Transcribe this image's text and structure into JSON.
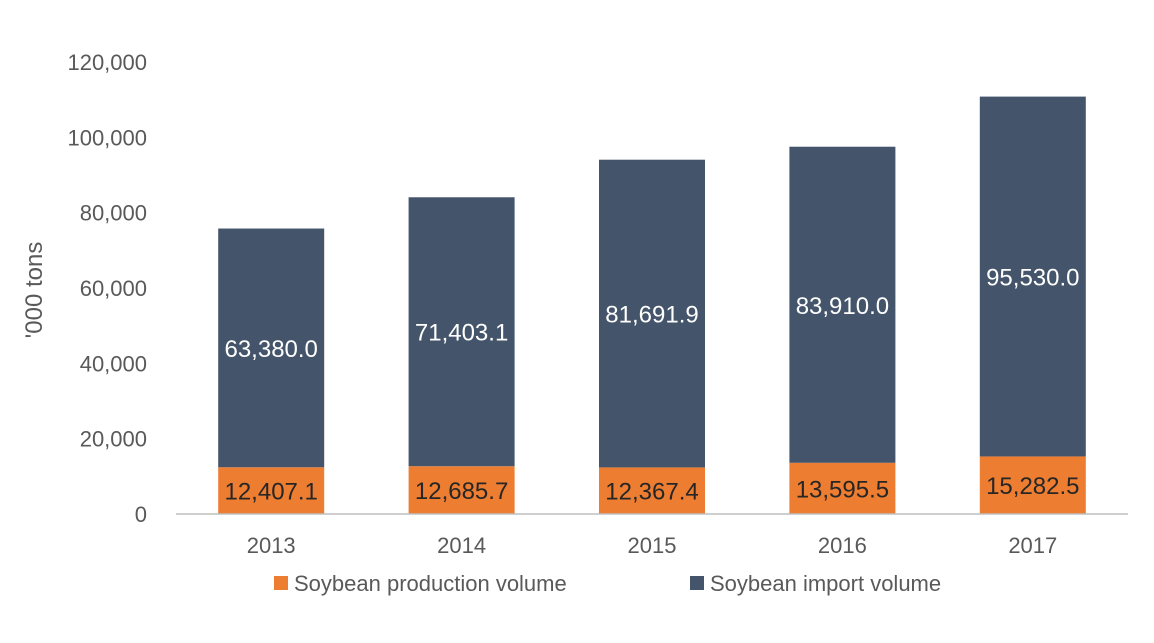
{
  "chart_data": {
    "type": "bar",
    "stacked": true,
    "title": "",
    "xlabel": "",
    "ylabel": "'000 tons",
    "categories": [
      "2013",
      "2014",
      "2015",
      "2016",
      "2017"
    ],
    "ylim": [
      0,
      120000
    ],
    "yticks": [
      0,
      20000,
      40000,
      60000,
      80000,
      100000,
      120000
    ],
    "ytick_labels": [
      "0",
      "20,000",
      "40,000",
      "60,000",
      "80,000",
      "100,000",
      "120,000"
    ],
    "grid": false,
    "legend_position": "bottom",
    "series": [
      {
        "name": "Soybean production volume",
        "color": "#ED7D31",
        "values": [
          12407.1,
          12685.7,
          12367.4,
          13595.5,
          15282.5
        ],
        "labels": [
          "12,407.1",
          "12,685.7",
          "12,367.4",
          "13,595.5",
          "15,282.5"
        ]
      },
      {
        "name": "Soybean import volume",
        "color": "#44546A",
        "values": [
          63380.0,
          71403.1,
          81691.9,
          83910.0,
          95530.0
        ],
        "labels": [
          "63,380.0",
          "71,403.1",
          "81,691.9",
          "83,910.0",
          "95,530.0"
        ]
      }
    ]
  }
}
